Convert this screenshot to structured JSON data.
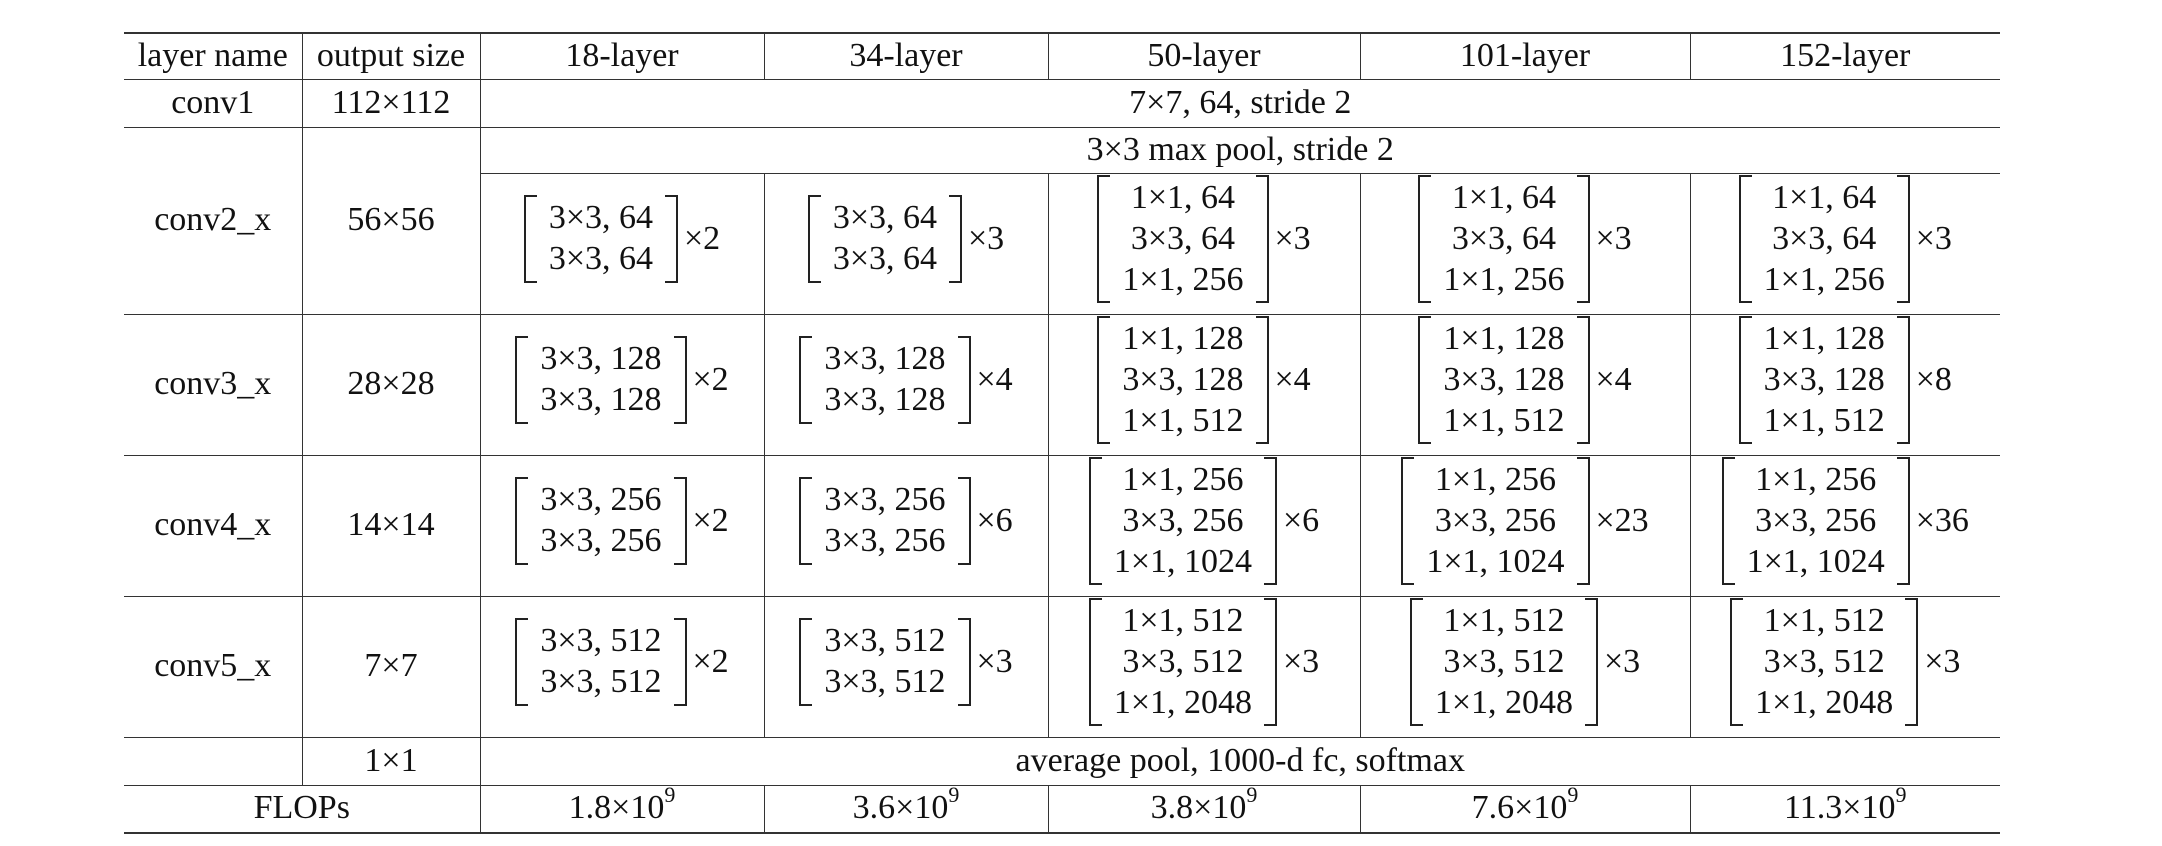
{
  "headers": [
    "layer name",
    "output size",
    "18-layer",
    "34-layer",
    "50-layer",
    "101-layer",
    "152-layer"
  ],
  "conv1": {
    "name": "conv1",
    "output": "112×112",
    "spec": "7×7, 64, stride 2"
  },
  "pool": {
    "spec": "3×3 max pool, stride 2"
  },
  "blocks": [
    {
      "name": "conv2_x",
      "output": "56×56",
      "cells": [
        {
          "rows": [
            "3×3, 64",
            "3×3, 64"
          ],
          "mult": "×2"
        },
        {
          "rows": [
            "3×3, 64",
            "3×3, 64"
          ],
          "mult": "×3"
        },
        {
          "rows": [
            "1×1, 64",
            "3×3, 64",
            "1×1, 256"
          ],
          "mult": "×3"
        },
        {
          "rows": [
            "1×1, 64",
            "3×3, 64",
            "1×1, 256"
          ],
          "mult": "×3"
        },
        {
          "rows": [
            "1×1, 64",
            "3×3, 64",
            "1×1, 256"
          ],
          "mult": "×3"
        }
      ]
    },
    {
      "name": "conv3_x",
      "output": "28×28",
      "cells": [
        {
          "rows": [
            "3×3, 128",
            "3×3, 128"
          ],
          "mult": "×2"
        },
        {
          "rows": [
            "3×3, 128",
            "3×3, 128"
          ],
          "mult": "×4"
        },
        {
          "rows": [
            "1×1, 128",
            "3×3, 128",
            "1×1, 512"
          ],
          "mult": "×4"
        },
        {
          "rows": [
            "1×1, 128",
            "3×3, 128",
            "1×1, 512"
          ],
          "mult": "×4"
        },
        {
          "rows": [
            "1×1, 128",
            "3×3, 128",
            "1×1, 512"
          ],
          "mult": "×8"
        }
      ]
    },
    {
      "name": "conv4_x",
      "output": "14×14",
      "cells": [
        {
          "rows": [
            "3×3, 256",
            "3×3, 256"
          ],
          "mult": "×2"
        },
        {
          "rows": [
            "3×3, 256",
            "3×3, 256"
          ],
          "mult": "×6"
        },
        {
          "rows": [
            "1×1, 256",
            "3×3, 256",
            "1×1, 1024"
          ],
          "mult": "×6"
        },
        {
          "rows": [
            "1×1, 256",
            "3×3, 256",
            "1×1, 1024"
          ],
          "mult": "×23"
        },
        {
          "rows": [
            "1×1, 256",
            "3×3, 256",
            "1×1, 1024"
          ],
          "mult": "×36"
        }
      ]
    },
    {
      "name": "conv5_x",
      "output": "7×7",
      "cells": [
        {
          "rows": [
            "3×3, 512",
            "3×3, 512"
          ],
          "mult": "×2"
        },
        {
          "rows": [
            "3×3, 512",
            "3×3, 512"
          ],
          "mult": "×3"
        },
        {
          "rows": [
            "1×1, 512",
            "3×3, 512",
            "1×1, 2048"
          ],
          "mult": "×3"
        },
        {
          "rows": [
            "1×1, 512",
            "3×3, 512",
            "1×1, 2048"
          ],
          "mult": "×3"
        },
        {
          "rows": [
            "1×1, 512",
            "3×3, 512",
            "1×1, 2048"
          ],
          "mult": "×3"
        }
      ]
    }
  ],
  "fc": {
    "name": "",
    "output": "1×1",
    "spec": "average pool, 1000-d fc, softmax"
  },
  "flops": {
    "label": "FLOPs",
    "values": [
      {
        "mant": "1.8×10",
        "exp": "9"
      },
      {
        "mant": "3.6×10",
        "exp": "9"
      },
      {
        "mant": "3.8×10",
        "exp": "9"
      },
      {
        "mant": "7.6×10",
        "exp": "9"
      },
      {
        "mant": "11.3×10",
        "exp": "9"
      }
    ]
  }
}
